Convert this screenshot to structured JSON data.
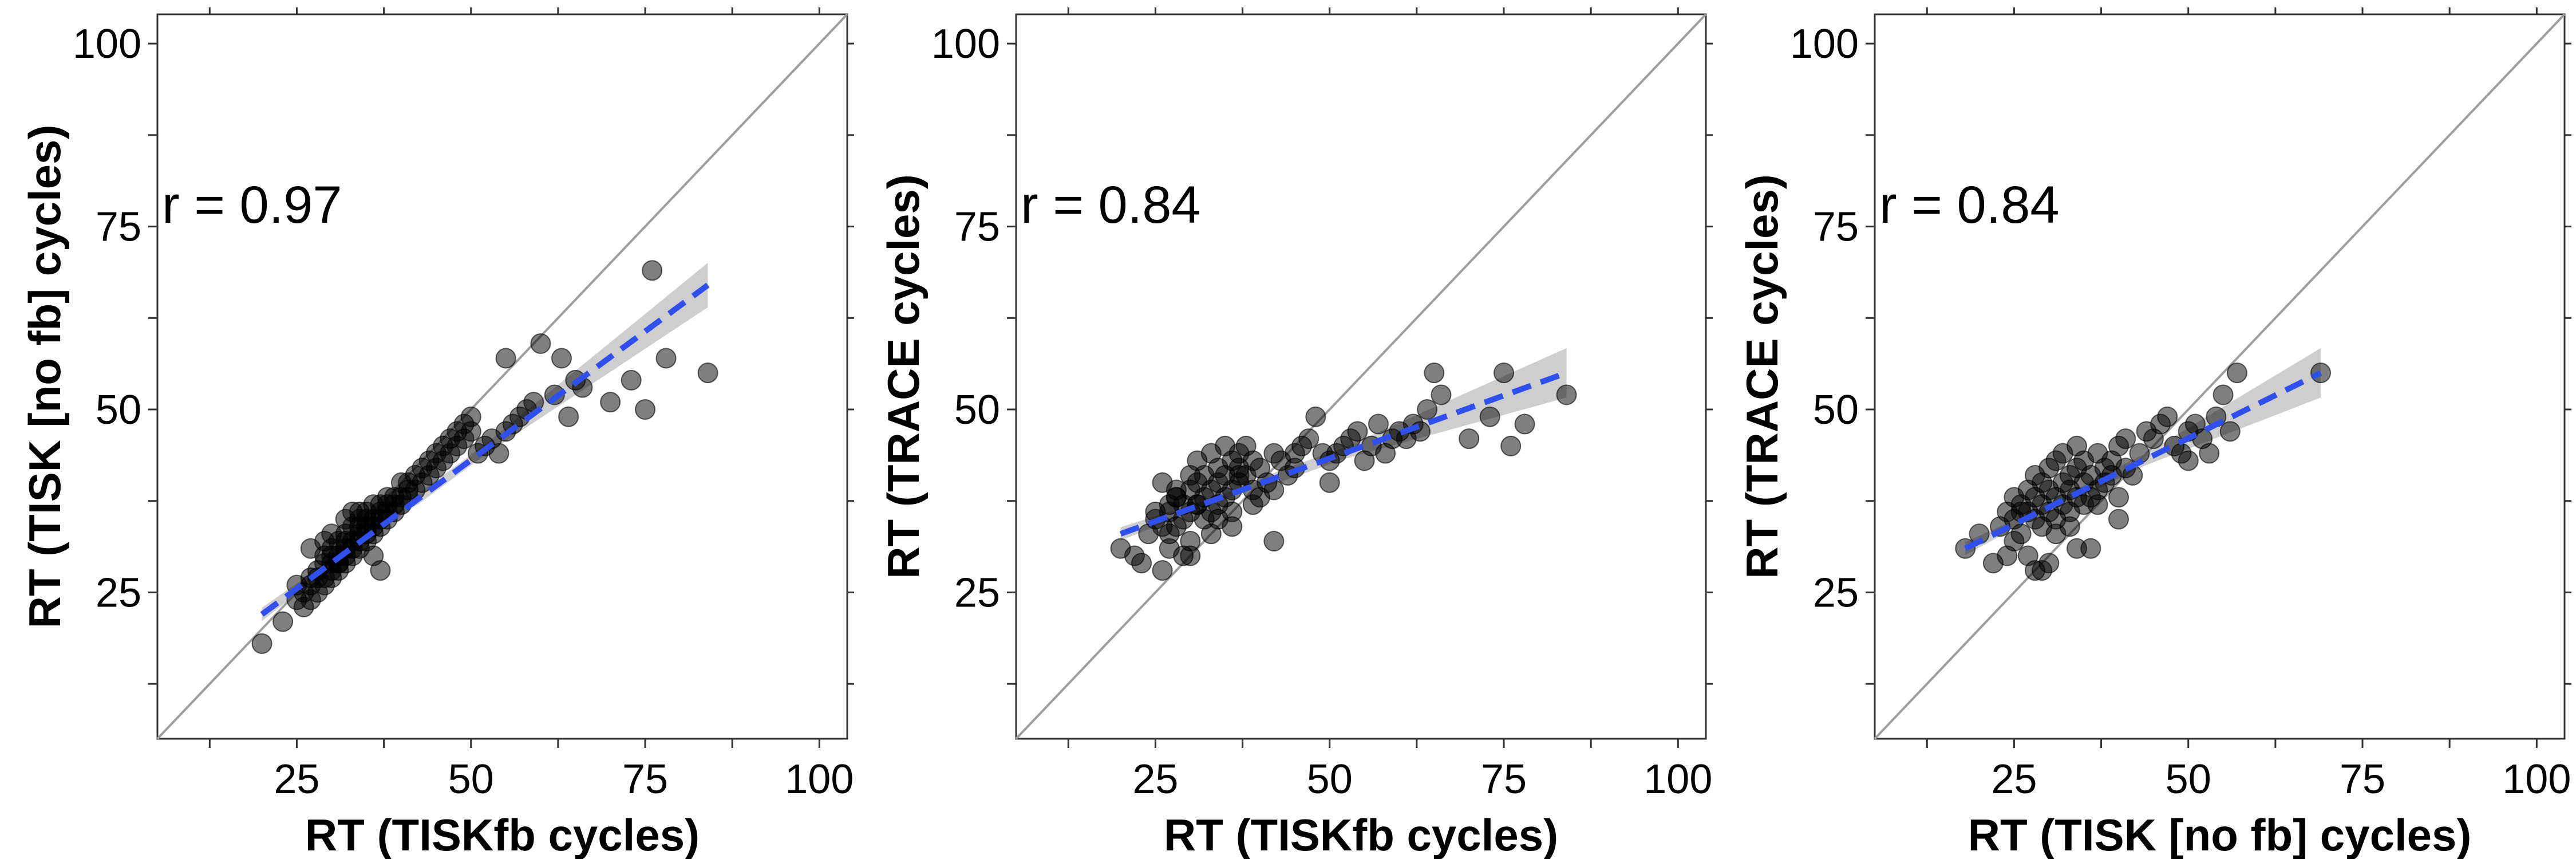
{
  "chart_data": [
    {
      "type": "scatter",
      "xlabel": "RT (TISKfb cycles)",
      "ylabel": "RT (TISK [no fb] cycles)",
      "xlim": [
        5,
        104
      ],
      "ylim": [
        5,
        104
      ],
      "xticks": [
        25,
        50,
        75,
        100
      ],
      "yticks": [
        25,
        50,
        75,
        100
      ],
      "annotation": "r = 0.97",
      "annotation_pos": [
        5,
        78
      ],
      "identity_line": true,
      "grid": false,
      "fit": {
        "x": [
          20,
          84
        ],
        "y": [
          22,
          67
        ],
        "ci_start": 1.0,
        "ci_end": 1.8
      },
      "points": {
        "x": [
          20,
          23,
          25,
          25,
          26,
          26,
          27,
          27,
          27,
          28,
          28,
          28,
          29,
          29,
          29,
          29,
          30,
          30,
          30,
          30,
          30,
          31,
          31,
          31,
          31,
          32,
          32,
          32,
          32,
          32,
          33,
          33,
          33,
          33,
          34,
          34,
          34,
          34,
          34,
          35,
          35,
          35,
          35,
          35,
          36,
          36,
          36,
          36,
          37,
          37,
          37,
          37,
          38,
          38,
          38,
          38,
          39,
          39,
          39,
          40,
          40,
          40,
          41,
          41,
          41,
          42,
          42,
          43,
          43,
          44,
          44,
          45,
          45,
          46,
          46,
          47,
          47,
          48,
          48,
          49,
          49,
          50,
          50,
          51,
          52,
          53,
          54,
          55,
          55,
          56,
          57,
          58,
          59,
          60,
          62,
          63,
          64,
          65,
          66,
          70,
          73,
          75,
          76,
          78,
          84,
          27,
          30,
          33,
          36,
          31,
          34,
          37,
          29,
          32
        ],
        "y": [
          18,
          21,
          24,
          26,
          23,
          25,
          24,
          26,
          27,
          25,
          27,
          28,
          26,
          27,
          29,
          30,
          27,
          28,
          29,
          30,
          31,
          28,
          29,
          30,
          32,
          29,
          30,
          31,
          32,
          33,
          30,
          31,
          32,
          34,
          31,
          32,
          33,
          34,
          35,
          32,
          33,
          34,
          35,
          36,
          33,
          34,
          35,
          37,
          34,
          35,
          36,
          37,
          35,
          36,
          37,
          38,
          36,
          37,
          38,
          37,
          38,
          40,
          38,
          39,
          40,
          39,
          41,
          40,
          42,
          41,
          43,
          42,
          44,
          43,
          45,
          44,
          46,
          45,
          47,
          46,
          48,
          47,
          49,
          44,
          45,
          46,
          44,
          47,
          57,
          48,
          49,
          50,
          51,
          59,
          52,
          57,
          49,
          54,
          53,
          51,
          54,
          50,
          69,
          57,
          55,
          31,
          33,
          36,
          30,
          29,
          36,
          28,
          32,
          35
        ]
      }
    },
    {
      "type": "scatter",
      "xlabel": "RT (TISKfb cycles)",
      "ylabel": "RT (TRACE cycles)",
      "xlim": [
        5,
        104
      ],
      "ylim": [
        5,
        104
      ],
      "xticks": [
        25,
        50,
        75,
        100
      ],
      "yticks": [
        25,
        50,
        75,
        100
      ],
      "annotation": "r = 0.84",
      "annotation_pos": [
        5,
        78
      ],
      "identity_line": true,
      "grid": false,
      "fit": {
        "x": [
          20,
          84
        ],
        "y": [
          33,
          55
        ],
        "ci_start": 1.0,
        "ci_end": 2.0
      },
      "points": {
        "x": [
          20,
          22,
          23,
          24,
          25,
          25,
          26,
          26,
          27,
          27,
          27,
          28,
          28,
          28,
          29,
          29,
          29,
          30,
          30,
          30,
          30,
          31,
          31,
          31,
          32,
          32,
          32,
          33,
          33,
          33,
          34,
          34,
          34,
          35,
          35,
          35,
          36,
          36,
          36,
          37,
          37,
          37,
          38,
          38,
          39,
          39,
          40,
          40,
          41,
          42,
          42,
          43,
          44,
          45,
          46,
          47,
          48,
          49,
          50,
          50,
          51,
          52,
          53,
          54,
          55,
          56,
          57,
          58,
          59,
          60,
          61,
          62,
          63,
          64,
          65,
          66,
          70,
          73,
          75,
          76,
          78,
          84,
          27,
          30,
          33,
          36,
          39,
          42,
          45,
          31,
          34,
          37,
          28,
          26
        ],
        "y": [
          31,
          30,
          29,
          33,
          36,
          35,
          28,
          34,
          37,
          33,
          36,
          39,
          34,
          38,
          30,
          35,
          37,
          36,
          39,
          41,
          32,
          37,
          40,
          43,
          35,
          38,
          41,
          36,
          39,
          44,
          37,
          40,
          42,
          38,
          41,
          45,
          34,
          39,
          43,
          40,
          42,
          44,
          41,
          45,
          39,
          43,
          38,
          42,
          40,
          44,
          32,
          43,
          41,
          44,
          45,
          46,
          49,
          44,
          40,
          43,
          44,
          45,
          46,
          47,
          43,
          45,
          48,
          44,
          46,
          47,
          46,
          48,
          47,
          50,
          55,
          52,
          46,
          49,
          55,
          45,
          48,
          52,
          31,
          30,
          33,
          36,
          37,
          39,
          42,
          37,
          35,
          41,
          38,
          40
        ]
      }
    },
    {
      "type": "scatter",
      "xlabel": "RT (TISK [no fb] cycles)",
      "ylabel": "RT (TRACE cycles)",
      "xlim": [
        5,
        104
      ],
      "ylim": [
        5,
        104
      ],
      "xticks": [
        25,
        50,
        75,
        100
      ],
      "yticks": [
        25,
        50,
        75,
        100
      ],
      "annotation": "r = 0.84",
      "annotation_pos": [
        5,
        78
      ],
      "identity_line": true,
      "grid": false,
      "fit": {
        "x": [
          18,
          69
        ],
        "y": [
          31,
          55
        ],
        "ci_start": 1.0,
        "ci_end": 2.0
      },
      "points": {
        "x": [
          18,
          20,
          22,
          23,
          24,
          24,
          25,
          25,
          26,
          26,
          27,
          27,
          27,
          28,
          28,
          28,
          29,
          29,
          29,
          30,
          30,
          30,
          31,
          31,
          31,
          32,
          32,
          32,
          33,
          33,
          33,
          34,
          34,
          34,
          35,
          35,
          35,
          36,
          36,
          37,
          37,
          38,
          38,
          39,
          39,
          40,
          40,
          41,
          41,
          42,
          43,
          44,
          45,
          46,
          47,
          48,
          49,
          50,
          50,
          51,
          52,
          53,
          54,
          55,
          56,
          57,
          69,
          25,
          28,
          31,
          34,
          37,
          40,
          30,
          33,
          36,
          26,
          29
        ],
        "y": [
          31,
          33,
          29,
          34,
          36,
          30,
          35,
          38,
          33,
          37,
          36,
          39,
          30,
          35,
          38,
          41,
          34,
          37,
          40,
          36,
          39,
          42,
          35,
          38,
          43,
          37,
          40,
          44,
          36,
          39,
          41,
          38,
          42,
          45,
          37,
          40,
          43,
          38,
          41,
          39,
          44,
          40,
          42,
          41,
          43,
          38,
          45,
          42,
          46,
          41,
          44,
          47,
          46,
          48,
          49,
          45,
          44,
          43,
          47,
          48,
          46,
          44,
          49,
          52,
          47,
          55,
          55,
          32,
          28,
          33,
          31,
          37,
          35,
          29,
          34,
          31,
          36,
          28
        ]
      }
    }
  ]
}
